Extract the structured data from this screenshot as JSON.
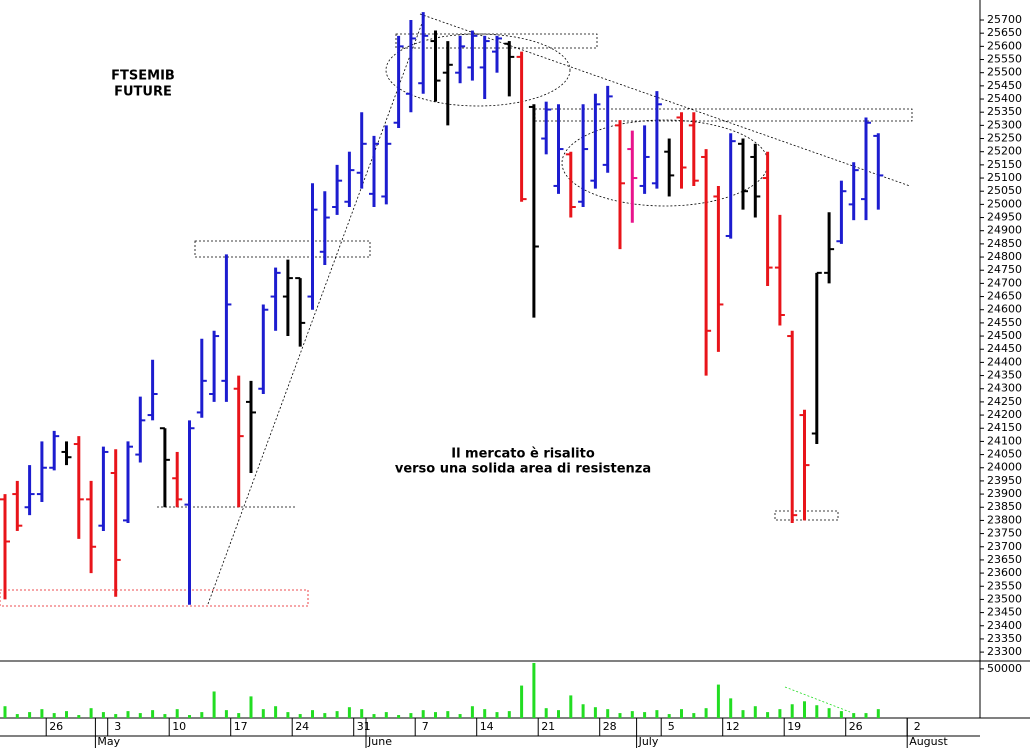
{
  "chart_data": [
    {
      "type": "ohlc",
      "title_lines": [
        "FTSEMIB",
        "FUTURE"
      ],
      "annotation_lines": [
        "Il mercato è risalito",
        "verso una solida area di resistenza"
      ],
      "categories": [
        null,
        null,
        null,
        null,
        "26",
        null,
        null,
        null,
        null,
        "3",
        null,
        null,
        null,
        null,
        "10",
        null,
        null,
        null,
        null,
        "17",
        null,
        null,
        null,
        null,
        "24",
        null,
        null,
        null,
        null,
        "31",
        null,
        null,
        null,
        null,
        "7",
        null,
        null,
        null,
        null,
        "14",
        null,
        null,
        null,
        null,
        "21",
        null,
        null,
        null,
        null,
        "28",
        null,
        null,
        null,
        null,
        "5",
        null,
        null,
        null,
        null,
        "12",
        null,
        null,
        null,
        null,
        "19",
        null,
        null,
        null,
        null,
        "26",
        null,
        null,
        null,
        null,
        "2"
      ],
      "months": [
        null,
        null,
        null,
        null,
        null,
        null,
        null,
        null,
        "May",
        null,
        null,
        null,
        null,
        null,
        null,
        null,
        null,
        null,
        null,
        null,
        null,
        null,
        null,
        null,
        null,
        null,
        null,
        null,
        null,
        null,
        "June",
        null,
        null,
        null,
        null,
        null,
        null,
        null,
        null,
        null,
        null,
        null,
        null,
        null,
        null,
        null,
        null,
        null,
        null,
        null,
        null,
        null,
        "July",
        null,
        null,
        null,
        null,
        null,
        null,
        null,
        null,
        null,
        null,
        null,
        null,
        null,
        null,
        null,
        null,
        null,
        null,
        null,
        null,
        null,
        "August"
      ],
      "open": [
        23880,
        23900,
        23850,
        23900,
        24000,
        24060,
        24090,
        23880,
        23780,
        23980,
        23800,
        24050,
        24200,
        24150,
        23960,
        23860,
        24210,
        24280,
        24330,
        24300,
        24250,
        24300,
        24650,
        24650,
        24720,
        24650,
        24820,
        24990,
        25010,
        25120,
        25040,
        25030,
        25310,
        25420,
        25460,
        25620,
        25500,
        25500,
        25520,
        25520,
        25580,
        25610,
        25560,
        25370,
        25250,
        25070,
        25190,
        25010,
        25090,
        25150,
        25300,
        25210,
        25070,
        25080,
        25200,
        25330,
        25300,
        25180,
        25030,
        24880,
        25230,
        25180,
        25100,
        24760,
        24500,
        24200,
        24130,
        24740,
        24860,
        25000,
        25020,
        25260,
        null,
        null,
        null
      ],
      "high": [
        23900,
        23950,
        24010,
        24100,
        24140,
        24100,
        24120,
        23950,
        24080,
        24070,
        24100,
        24270,
        24410,
        24150,
        24060,
        24180,
        24490,
        24520,
        24810,
        24350,
        24330,
        24620,
        24760,
        24790,
        24720,
        25080,
        25050,
        25150,
        25200,
        25350,
        25260,
        25300,
        25640,
        25700,
        25730,
        25660,
        25620,
        25640,
        25660,
        25640,
        25640,
        25620,
        25580,
        25380,
        25390,
        25380,
        25200,
        25380,
        25420,
        25450,
        25320,
        25280,
        25300,
        25430,
        25250,
        25350,
        25350,
        25210,
        25070,
        25270,
        25250,
        25230,
        25200,
        24960,
        24520,
        24220,
        24740,
        24970,
        25090,
        25160,
        25330,
        25270,
        null,
        null,
        null
      ],
      "low": [
        23500,
        23760,
        23820,
        23870,
        23990,
        24010,
        23730,
        23600,
        23760,
        23510,
        23790,
        24020,
        24180,
        23850,
        23850,
        23480,
        24190,
        24250,
        24250,
        23850,
        23980,
        24280,
        24520,
        24500,
        24460,
        24600,
        24770,
        24960,
        24990,
        25060,
        24990,
        25000,
        25290,
        25350,
        25420,
        25390,
        25300,
        25460,
        25470,
        25400,
        25500,
        25410,
        25010,
        24570,
        25190,
        25040,
        24950,
        24990,
        25060,
        25120,
        24830,
        24930,
        25040,
        25060,
        25030,
        25060,
        25070,
        24350,
        24440,
        24870,
        24980,
        24950,
        24690,
        24540,
        23790,
        23800,
        24090,
        24700,
        24850,
        24940,
        24940,
        24980,
        null,
        null,
        null
      ],
      "close": [
        23720,
        23780,
        23900,
        24000,
        24120,
        24040,
        23880,
        23700,
        24060,
        23650,
        24080,
        24180,
        24280,
        24030,
        23880,
        24150,
        24330,
        24500,
        24620,
        24120,
        24210,
        24600,
        24740,
        24720,
        24550,
        24980,
        24950,
        25090,
        25130,
        25230,
        25230,
        25230,
        25600,
        25630,
        25640,
        25470,
        25530,
        25600,
        25640,
        25620,
        25630,
        25560,
        25020,
        24840,
        25360,
        25210,
        24990,
        25210,
        25380,
        25410,
        25080,
        25100,
        25180,
        25380,
        25110,
        25140,
        25090,
        24520,
        24620,
        25240,
        25050,
        25030,
        24760,
        24580,
        23820,
        24010,
        24740,
        24830,
        25050,
        25130,
        25310,
        25110,
        null,
        null,
        null
      ],
      "colors": [
        "#e8141a",
        "#e8141a",
        "#1c1ccf",
        "#1c1ccf",
        "#1c1ccf",
        "#000000",
        "#e8141a",
        "#e8141a",
        "#1c1ccf",
        "#e8141a",
        "#1c1ccf",
        "#1c1ccf",
        "#1c1ccf",
        "#000000",
        "#e8141a",
        "#1c1ccf",
        "#1c1ccf",
        "#1c1ccf",
        "#1c1ccf",
        "#e8141a",
        "#000000",
        "#1c1ccf",
        "#1c1ccf",
        "#000000",
        "#000000",
        "#1c1ccf",
        "#1c1ccf",
        "#1c1ccf",
        "#1c1ccf",
        "#1c1ccf",
        "#1c1ccf",
        "#1c1ccf",
        "#1c1ccf",
        "#1c1ccf",
        "#1c1ccf",
        "#000000",
        "#000000",
        "#1c1ccf",
        "#1c1ccf",
        "#1c1ccf",
        "#1c1ccf",
        "#000000",
        "#e8141a",
        "#000000",
        "#1c1ccf",
        "#1c1ccf",
        "#e8141a",
        "#1c1ccf",
        "#1c1ccf",
        "#1c1ccf",
        "#e8141a",
        "#e8148c",
        "#1c1ccf",
        "#1c1ccf",
        "#000000",
        "#e8141a",
        "#e8141a",
        "#e8141a",
        "#e8141a",
        "#1c1ccf",
        "#000000",
        "#000000",
        "#e8141a",
        "#e8141a",
        "#e8141a",
        "#e8141a",
        "#000000",
        "#000000",
        "#1c1ccf",
        "#1c1ccf",
        "#1c1ccf",
        "#1c1ccf",
        null,
        null,
        null
      ],
      "ylim": [
        23270,
        25776
      ],
      "yticks": [
        23300,
        23350,
        23400,
        23450,
        23500,
        23550,
        23600,
        23650,
        23700,
        23750,
        23800,
        23850,
        23900,
        23950,
        24000,
        24050,
        24100,
        24150,
        24200,
        24250,
        24300,
        24350,
        24400,
        24450,
        24500,
        24550,
        24600,
        24650,
        24700,
        24750,
        24800,
        24850,
        24900,
        24950,
        25000,
        25050,
        25100,
        25150,
        25200,
        25250,
        25300,
        25350,
        25400,
        25450,
        25500,
        25550,
        25600,
        25650,
        25700
      ]
    },
    {
      "type": "bar",
      "color": "#22dd22",
      "values": [
        12000,
        4000,
        6000,
        9000,
        5000,
        7000,
        3000,
        10000,
        6000,
        4000,
        7000,
        5000,
        8000,
        4000,
        9000,
        3000,
        6000,
        27000,
        8000,
        5000,
        22000,
        9000,
        12000,
        6000,
        4000,
        8000,
        5000,
        7000,
        11000,
        9000,
        4000,
        6000,
        3000,
        5000,
        8000,
        6000,
        7000,
        4000,
        12000,
        9000,
        6000,
        7000,
        33000,
        56000,
        10000,
        8000,
        23000,
        14000,
        11000,
        9000,
        5000,
        7000,
        6000,
        8000,
        4000,
        9000,
        5000,
        10000,
        34000,
        20000,
        8000,
        12000,
        6000,
        9000,
        14000,
        17000,
        13000,
        10000,
        7000,
        5000,
        5000,
        9000,
        null,
        null,
        null
      ],
      "ylim": [
        0,
        57000
      ],
      "yticks": [
        50000
      ]
    }
  ]
}
